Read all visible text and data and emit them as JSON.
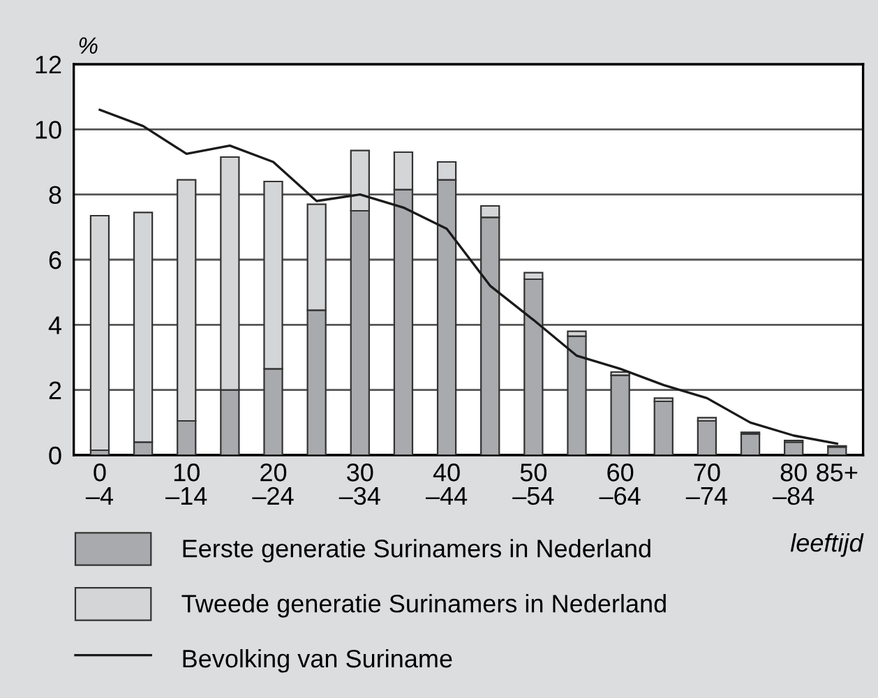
{
  "chart_data": {
    "type": "bar",
    "stacked": true,
    "ylabel": "%",
    "xlabel": "leeftijd",
    "categories": [
      "0\n–4",
      null,
      "10\n–14",
      null,
      "20\n–24",
      null,
      "30\n–34",
      null,
      "40\n–44",
      null,
      "50\n–54",
      null,
      "60\n–64",
      null,
      "70\n–74",
      null,
      "80\n–84",
      "85+"
    ],
    "series": [
      {
        "name": "Eerste generatie Surinamers in Nederland",
        "color": "#a9aaad",
        "values": [
          0.15,
          0.4,
          1.05,
          2.0,
          2.65,
          4.45,
          7.5,
          8.15,
          8.45,
          7.3,
          5.4,
          3.65,
          2.45,
          1.65,
          1.05,
          0.65,
          0.4,
          0.25
        ]
      },
      {
        "name": "Tweede generatie Surinamers in Nederland",
        "color": "#d4d5d7",
        "values": [
          7.2,
          7.05,
          7.4,
          7.15,
          5.75,
          3.25,
          1.85,
          1.15,
          0.55,
          0.35,
          0.2,
          0.15,
          0.1,
          0.1,
          0.1,
          0.05,
          0.05,
          0.03
        ]
      },
      {
        "name": "Bevolking van Suriname",
        "type": "line",
        "color": "#1a1a1a",
        "values": [
          10.6,
          10.1,
          9.25,
          9.5,
          9.0,
          7.8,
          8.0,
          7.6,
          6.95,
          5.2,
          4.15,
          3.05,
          2.65,
          2.15,
          1.75,
          1.0,
          0.6,
          0.35
        ]
      }
    ],
    "ylim": [
      0,
      12
    ],
    "yticks": [
      0,
      2,
      4,
      6,
      8,
      10,
      12
    ],
    "grid": "y",
    "legend": "bottom left"
  }
}
